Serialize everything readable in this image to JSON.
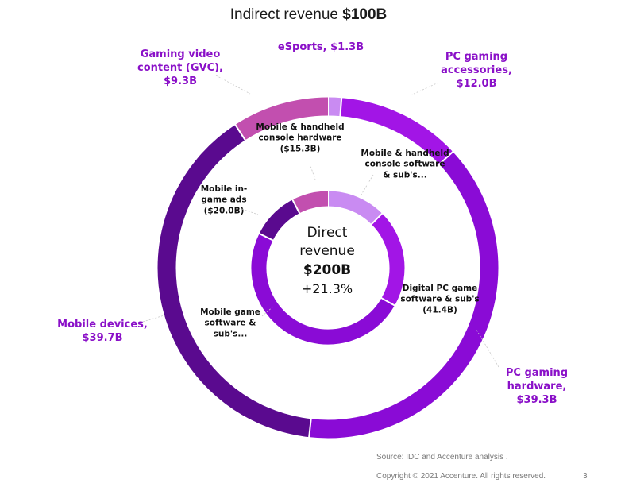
{
  "title_prefix": "Indirect revenue ",
  "title_bold": "$100B",
  "center": {
    "line1": "Direct",
    "line2": "revenue",
    "total": "$200B",
    "growth": "+21.3%"
  },
  "footer": {
    "source": "Source: IDC and Accenture analysis .",
    "copyright": "Copyright © 2021 Accenture. All rights reserved.",
    "page": "3"
  },
  "chart_data": [
    {
      "type": "pie",
      "variant": "donut",
      "ring": "outer",
      "title": "Indirect revenue $100B",
      "categories": [
        "eSports",
        "PC gaming accessories",
        "PC gaming hardware",
        "Mobile devices",
        "Gaming video content (GVC)"
      ],
      "values": [
        1.3,
        12.0,
        39.3,
        39.7,
        9.3
      ],
      "labels": [
        [
          "eSports, $1.3B"
        ],
        [
          "PC gaming",
          "accessories,",
          "$12.0B"
        ],
        [
          "PC gaming",
          "hardware,",
          "$39.3B"
        ],
        [
          "Mobile devices,",
          "$39.7B"
        ],
        [
          "Gaming video",
          "content (GVC),",
          "$9.3B"
        ]
      ],
      "colors": [
        "#C98BF2",
        "#A215E6",
        "#8A0BD6",
        "#5A0A8F",
        "#C24FAF"
      ]
    },
    {
      "type": "pie",
      "variant": "donut",
      "ring": "inner",
      "title": "Direct revenue $200B +21.3%",
      "categories": [
        "Mobile & handheld console software & sub's",
        "Digital PC game software & sub's",
        "Mobile game software & sub's",
        "Mobile in-game ads",
        "Mobile & handheld console hardware"
      ],
      "values": [
        25.0,
        41.4,
        98.3,
        20.0,
        15.3
      ],
      "labels": [
        [
          "Mobile & handheld",
          "console software",
          "& sub's..."
        ],
        [
          "Digital PC game",
          "software & sub's",
          "(41.4B)"
        ],
        [
          "Mobile game",
          "software &",
          "sub's..."
        ],
        [
          "Mobile in-",
          "game ads",
          "($20.0B)"
        ],
        [
          "Mobile & handheld",
          "console hardware",
          "($15.3B)"
        ]
      ],
      "colors": [
        "#C98BF2",
        "#A215E6",
        "#8A0BD6",
        "#5A0A8F",
        "#C24FAF"
      ]
    }
  ]
}
